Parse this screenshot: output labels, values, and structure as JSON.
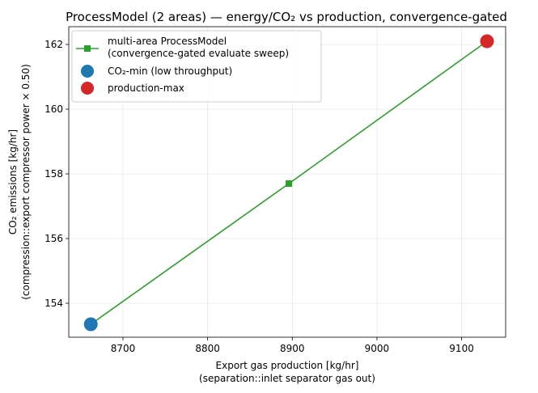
{
  "chart_data": {
    "type": "scatter",
    "title": "ProcessModel (2 areas) — energy/CO₂ vs production, convergence-gated",
    "xlabel": [
      "Export gas production [kg/hr]",
      "(separation::inlet separator gas out)"
    ],
    "ylabel": [
      "CO₂ emissions [kg/hr]",
      "(compression::export compressor power × 0.50)"
    ],
    "xlim": [
      8636,
      9152
    ],
    "ylim": [
      152.95,
      162.55
    ],
    "x_ticks": [
      8700,
      8800,
      8900,
      9000,
      9100
    ],
    "x_tick_labels": [
      "8700",
      "8800",
      "8900",
      "9000",
      "9100"
    ],
    "y_ticks": [
      154,
      156,
      158,
      160,
      162
    ],
    "y_tick_labels": [
      "154",
      "156",
      "158",
      "160",
      "162"
    ],
    "grid": true,
    "legend_position": "top-left",
    "series": [
      {
        "name": "multi-area ProcessModel\n(convergence-gated evaluate sweep)",
        "kind": "line",
        "marker": "square",
        "color": "#2ca02c",
        "x": [
          8662,
          8896,
          9130
        ],
        "y": [
          153.35,
          157.7,
          162.1
        ]
      },
      {
        "name": "CO₂-min (low throughput)",
        "kind": "point",
        "marker": "circle",
        "color": "#1f77b4",
        "x": [
          8662
        ],
        "y": [
          153.35
        ]
      },
      {
        "name": "production-max",
        "kind": "point",
        "marker": "circle",
        "color": "#d62728",
        "x": [
          9130
        ],
        "y": [
          162.1
        ]
      }
    ]
  }
}
